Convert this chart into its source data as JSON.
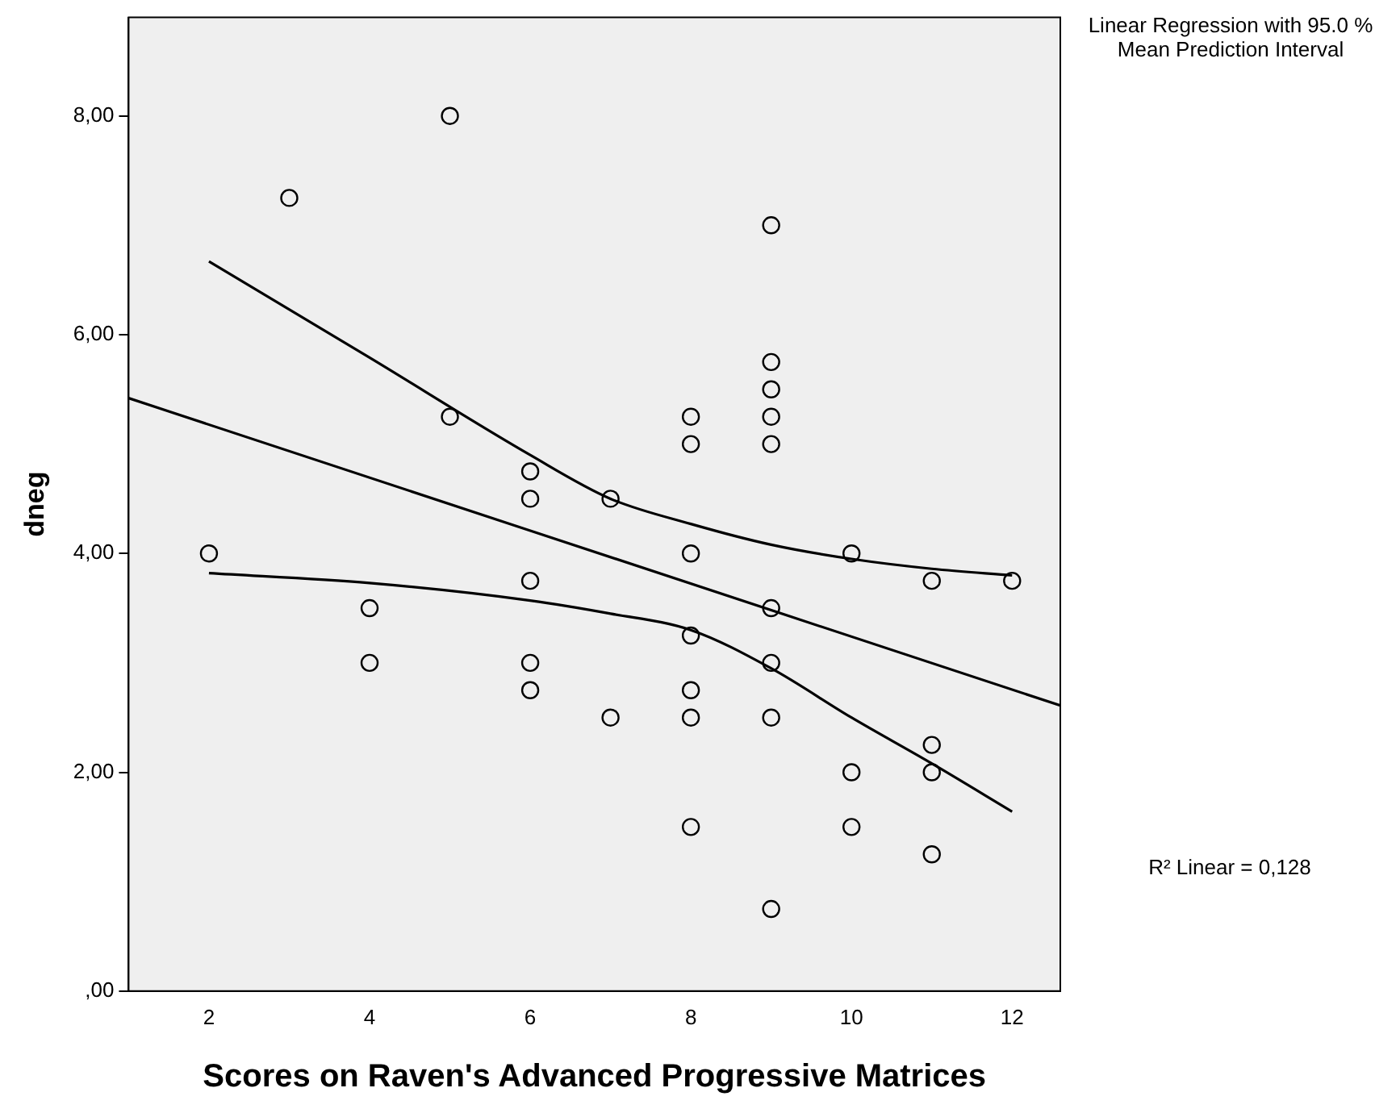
{
  "chart_data": {
    "type": "scatter",
    "xlabel": "Scores on Raven's Advanced Progressive Matrices",
    "ylabel": "dneg",
    "xlim": [
      1,
      12.6
    ],
    "ylim": [
      0,
      8.9
    ],
    "xticks": [
      2,
      4,
      6,
      8,
      10,
      12
    ],
    "yticks": [
      {
        "value": 0,
        "label": ",00"
      },
      {
        "value": 2,
        "label": "2,00"
      },
      {
        "value": 4,
        "label": "4,00"
      },
      {
        "value": 6,
        "label": "6,00"
      },
      {
        "value": 8,
        "label": "8,00"
      }
    ],
    "grid": false,
    "legend": false,
    "annotations": [
      "Linear Regression with 95.0 % Mean Prediction Interval",
      "R² Linear = 0,128"
    ],
    "series": [
      {
        "color": "#000000",
        "marker": "circle",
        "x": [
          2,
          3,
          4,
          4,
          5,
          5,
          6,
          6,
          6,
          6,
          6,
          7,
          7,
          8,
          8,
          8,
          8,
          8,
          8,
          8,
          9,
          9,
          9,
          9,
          9,
          9,
          9,
          9,
          9,
          10,
          10,
          10,
          11,
          11,
          11,
          11,
          12
        ],
        "values": [
          4,
          7.25,
          3.5,
          3,
          8,
          5.25,
          4.75,
          4.5,
          3.75,
          3,
          2.75,
          4.5,
          2.5,
          5.25,
          5,
          4,
          3.25,
          2.75,
          2.5,
          1.5,
          7,
          5.75,
          5.5,
          5.25,
          5,
          3.5,
          3,
          2.5,
          0.75,
          4,
          2,
          1.5,
          3.75,
          2.25,
          2,
          1.25,
          3.75
        ]
      },
      {
        "type": "line",
        "color": "#000000",
        "marker": "none",
        "x": [
          1,
          12.6
        ],
        "values": [
          5.42,
          2.61
        ]
      },
      {
        "type": "line",
        "color": "#000000",
        "marker": "none",
        "x": [
          2,
          4,
          6,
          7,
          8,
          9,
          10,
          11,
          12
        ],
        "values": [
          6.67,
          5.79,
          4.9,
          4.5,
          4.27,
          4.08,
          3.95,
          3.86,
          3.8
        ]
      },
      {
        "type": "line",
        "color": "#000000",
        "marker": "none",
        "x": [
          2,
          4,
          6,
          7,
          8,
          9,
          10,
          11,
          12
        ],
        "values": [
          3.82,
          3.73,
          3.57,
          3.45,
          3.3,
          2.95,
          2.5,
          2.08,
          1.64
        ]
      }
    ]
  }
}
